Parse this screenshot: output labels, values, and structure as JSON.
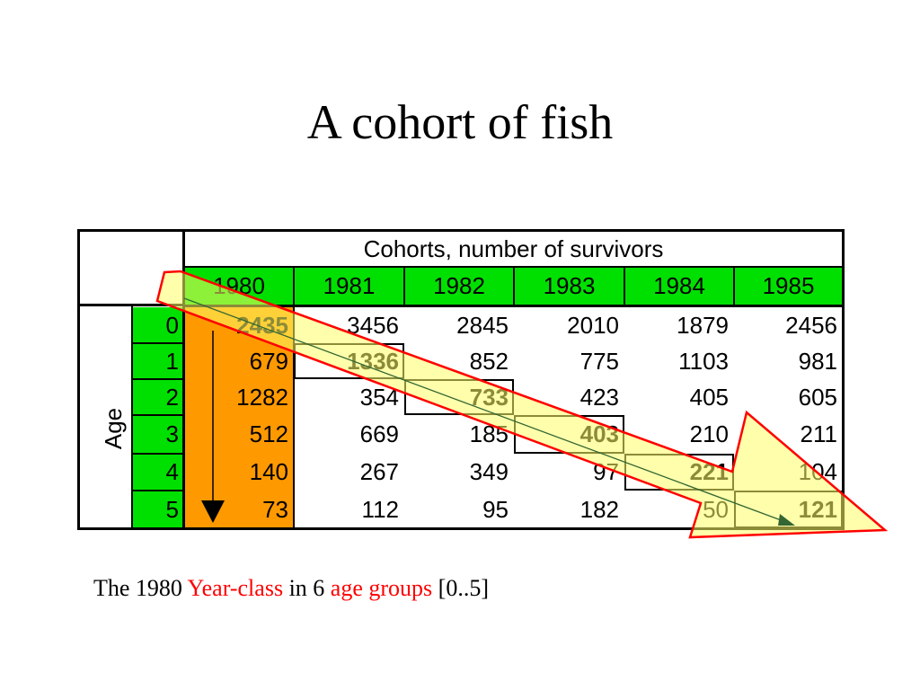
{
  "title": "A cohort of fish",
  "table": {
    "header": "Cohorts, number of survivors",
    "row_header": "Age",
    "years": [
      "1980",
      "1981",
      "1982",
      "1983",
      "1984",
      "1985"
    ],
    "ages": [
      "0",
      "1",
      "2",
      "3",
      "4",
      "5"
    ],
    "rows": [
      [
        "2435",
        "3456",
        "2845",
        "2010",
        "1879",
        "2456"
      ],
      [
        "679",
        "1336",
        "852",
        "775",
        "1103",
        "981"
      ],
      [
        "1282",
        "354",
        "733",
        "423",
        "405",
        "605"
      ],
      [
        "512",
        "669",
        "185",
        "403",
        "210",
        "211"
      ],
      [
        "140",
        "267",
        "349",
        "97",
        "221",
        "104"
      ],
      [
        "73",
        "112",
        "95",
        "182",
        "50",
        "121"
      ]
    ]
  },
  "caption": {
    "part1": "The 1980 ",
    "part2": "Year-class",
    "part3": " in 6 ",
    "part4": "age groups",
    "part5": " [0..5]"
  },
  "colors": {
    "header_green": "#00e000",
    "column_orange": "#ff9900",
    "arrow_fill": "#ffff66",
    "arrow_stroke": "#ff0000",
    "caption_highlight": "#ff0000"
  }
}
